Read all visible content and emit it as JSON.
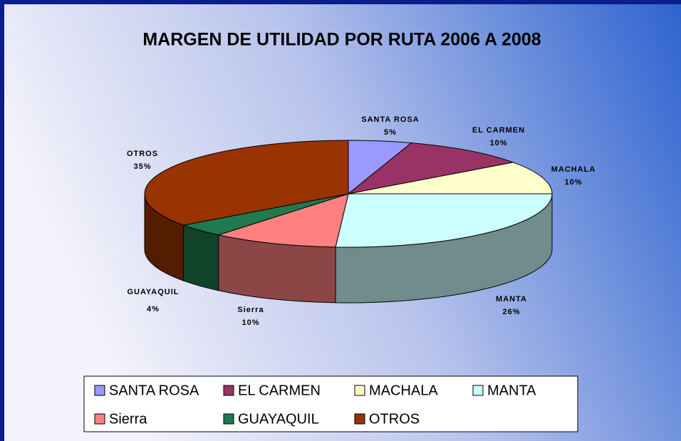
{
  "chart_data": {
    "type": "pie",
    "title": "MARGEN DE UTILIDAD POR RUTA 2006 A 2008",
    "categories": [
      "SANTA ROSA",
      "EL CARMEN",
      "MACHALA",
      "MANTA",
      "Sierra",
      "GUAYAQUIL",
      "OTROS"
    ],
    "values": [
      5,
      10,
      10,
      26,
      10,
      4,
      35
    ],
    "value_labels": [
      "5%",
      "10%",
      "10%",
      "26%",
      "10%",
      "4%",
      "35%"
    ],
    "colors": [
      "#9999ff",
      "#993366",
      "#ffffcc",
      "#ccffff",
      "#ff8080",
      "#1f7a4f",
      "#993300"
    ],
    "legend": "bottom"
  }
}
